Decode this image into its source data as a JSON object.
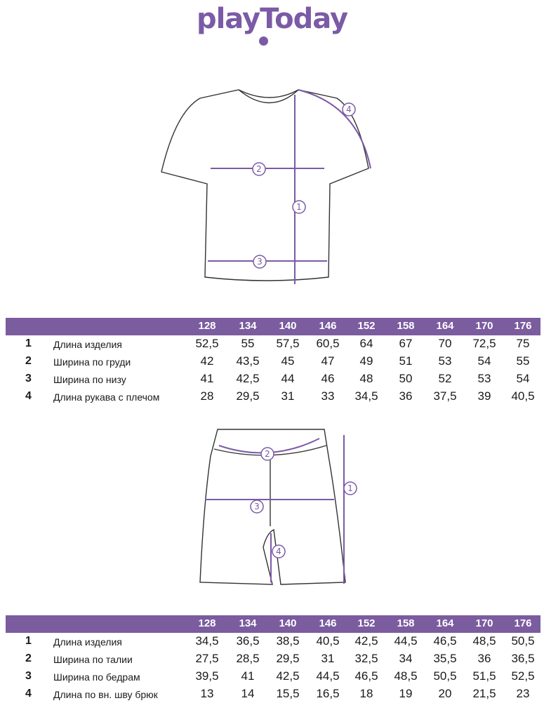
{
  "brand": {
    "logo_text": "playToday",
    "color": "#7b5aa6"
  },
  "header_color": "#7b5c9f",
  "sizes": [
    "128",
    "134",
    "140",
    "146",
    "152",
    "158",
    "164",
    "170",
    "176"
  ],
  "tshirt_table": {
    "rows": [
      {
        "num": "1",
        "label": "Длина изделия",
        "values": [
          "52,5",
          "55",
          "57,5",
          "60,5",
          "64",
          "67",
          "70",
          "72,5",
          "75"
        ]
      },
      {
        "num": "2",
        "label": "Ширина по груди",
        "values": [
          "42",
          "43,5",
          "45",
          "47",
          "49",
          "51",
          "53",
          "54",
          "55"
        ]
      },
      {
        "num": "3",
        "label": "Ширина по низу",
        "values": [
          "41",
          "42,5",
          "44",
          "46",
          "48",
          "50",
          "52",
          "53",
          "54"
        ]
      },
      {
        "num": "4",
        "label": "Длина рукава с плечом",
        "values": [
          "28",
          "29,5",
          "31",
          "33",
          "34,5",
          "36",
          "37,5",
          "39",
          "40,5"
        ]
      }
    ]
  },
  "shorts_table": {
    "rows": [
      {
        "num": "1",
        "label": "Длина изделия",
        "values": [
          "34,5",
          "36,5",
          "38,5",
          "40,5",
          "42,5",
          "44,5",
          "46,5",
          "48,5",
          "50,5"
        ]
      },
      {
        "num": "2",
        "label": "Ширина по талии",
        "values": [
          "27,5",
          "28,5",
          "29,5",
          "31",
          "32,5",
          "34",
          "35,5",
          "36",
          "36,5"
        ]
      },
      {
        "num": "3",
        "label": "Ширина по бедрам",
        "values": [
          "39,5",
          "41",
          "42,5",
          "44,5",
          "46,5",
          "48,5",
          "50,5",
          "51,5",
          "52,5"
        ]
      },
      {
        "num": "4",
        "label": "Длина по вн. шву брюк",
        "values": [
          "13",
          "14",
          "15,5",
          "16,5",
          "18",
          "19",
          "20",
          "21,5",
          "23"
        ]
      }
    ]
  },
  "tshirt_markers": [
    "1",
    "2",
    "3",
    "4"
  ],
  "shorts_markers": [
    "1",
    "2",
    "3",
    "4"
  ]
}
